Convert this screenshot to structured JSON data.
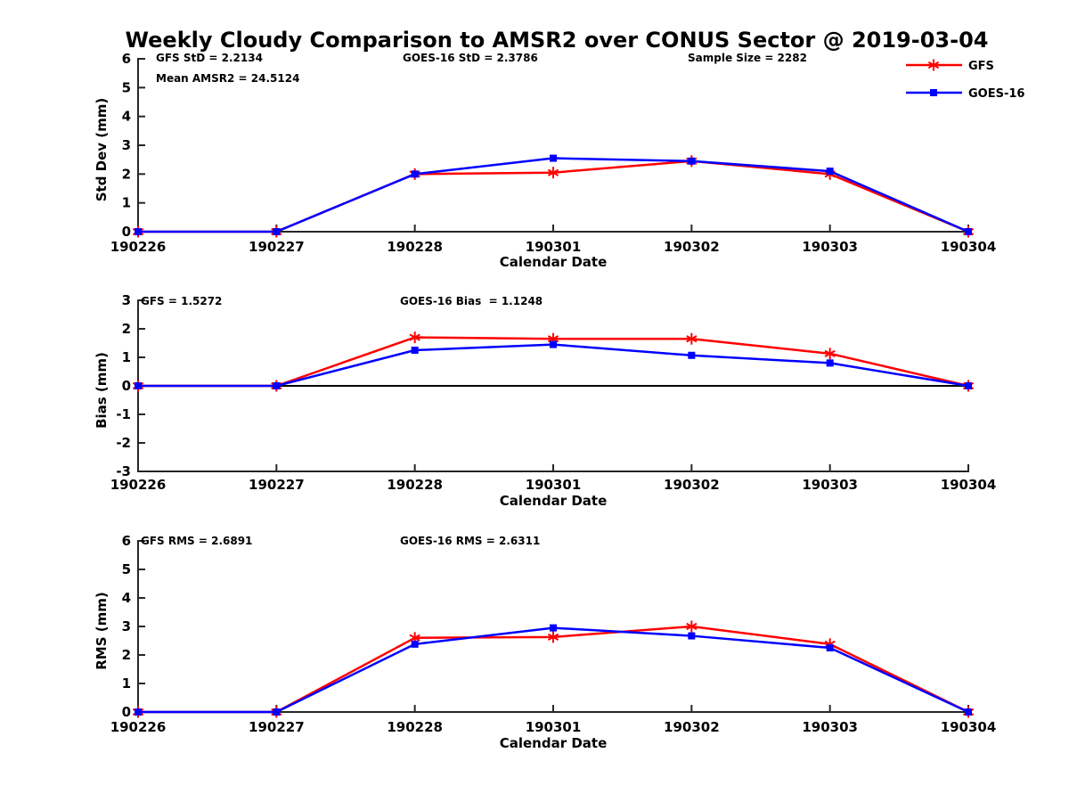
{
  "title": "Weekly Cloudy Comparison to AMSR2 over CONUS Sector @ 2019-03-04",
  "colors": {
    "gfs": "#ff0000",
    "goes16": "#0000ff",
    "axis": "#262626",
    "text": "#000000",
    "zero_line": "#000000"
  },
  "legend": {
    "position": "top-right-outside",
    "items": [
      {
        "key": "gfs",
        "label": "GFS",
        "color": "#ff0000",
        "marker": "asterisk"
      },
      {
        "key": "goes16",
        "label": "GOES-16",
        "color": "#0000ff",
        "marker": "square"
      }
    ]
  },
  "chart_data": [
    {
      "id": "std-dev",
      "type": "line",
      "xlabel": "Calendar Date",
      "ylabel": "Std Dev (mm)",
      "ylim": [
        0,
        6
      ],
      "yticks": [
        0,
        1,
        2,
        3,
        4,
        5,
        6
      ],
      "grid": false,
      "zero_line": false,
      "legend_visible": true,
      "categories": [
        "190226",
        "190227",
        "190228",
        "190301",
        "190302",
        "190303",
        "190304"
      ],
      "series": [
        {
          "key": "gfs",
          "name": "GFS",
          "color": "#ff0000",
          "marker": "asterisk",
          "values": [
            0,
            0,
            2.0,
            2.05,
            2.45,
            2.0,
            0
          ]
        },
        {
          "key": "goes16",
          "name": "GOES-16",
          "color": "#0000ff",
          "marker": "square",
          "values": [
            0,
            0,
            2.0,
            2.55,
            2.45,
            2.1,
            0
          ]
        }
      ],
      "annotations": [
        "GFS StD = 2.2134",
        "Mean AMSR2 = 24.5124",
        "GOES-16 StD = 2.3786",
        "Sample Size = 2282"
      ]
    },
    {
      "id": "bias",
      "type": "line",
      "xlabel": "Calendar Date",
      "ylabel": "Bias (mm)",
      "ylim": [
        -3,
        3
      ],
      "yticks": [
        -3,
        -2,
        -1,
        0,
        1,
        2,
        3
      ],
      "grid": false,
      "zero_line": true,
      "legend_visible": false,
      "categories": [
        "190226",
        "190227",
        "190228",
        "190301",
        "190302",
        "190303",
        "190304"
      ],
      "series": [
        {
          "key": "gfs",
          "name": "GFS",
          "color": "#ff0000",
          "marker": "asterisk",
          "values": [
            0,
            0,
            1.7,
            1.65,
            1.65,
            1.13,
            0
          ]
        },
        {
          "key": "goes16",
          "name": "GOES-16",
          "color": "#0000ff",
          "marker": "square",
          "values": [
            0,
            0,
            1.25,
            1.45,
            1.07,
            0.8,
            0
          ]
        }
      ],
      "annotations": [
        "GFS = 1.5272",
        "GOES-16 Bias  = 1.1248"
      ]
    },
    {
      "id": "rms",
      "type": "line",
      "xlabel": "Calendar Date",
      "ylabel": "RMS (mm)",
      "ylim": [
        0,
        6
      ],
      "yticks": [
        0,
        1,
        2,
        3,
        4,
        5,
        6
      ],
      "grid": false,
      "zero_line": false,
      "legend_visible": false,
      "categories": [
        "190226",
        "190227",
        "190228",
        "190301",
        "190302",
        "190303",
        "190304"
      ],
      "series": [
        {
          "key": "gfs",
          "name": "GFS",
          "color": "#ff0000",
          "marker": "asterisk",
          "values": [
            0,
            0,
            2.6,
            2.63,
            3.0,
            2.38,
            0
          ]
        },
        {
          "key": "goes16",
          "name": "GOES-16",
          "color": "#0000ff",
          "marker": "square",
          "values": [
            0,
            0,
            2.38,
            2.95,
            2.67,
            2.25,
            0
          ]
        }
      ],
      "annotations": [
        "GFS RMS = 2.6891",
        "GOES-16 RMS = 2.6311"
      ]
    }
  ]
}
